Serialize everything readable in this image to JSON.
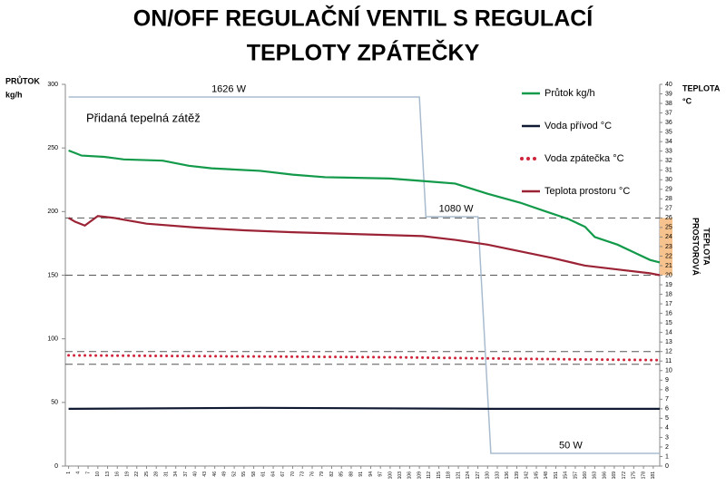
{
  "chart_data": {
    "type": "line",
    "title": [
      "ON/OFF REGULAČNÍ VENTIL S REGULACÍ",
      "TEPLOTY ZPÁTEČKY"
    ],
    "y_label": [
      "PRŮTOK",
      "kg/h"
    ],
    "y2_label": [
      "TEPLOTA",
      "°C"
    ],
    "annotation": "Přidaná tepelná zátěž",
    "xlim": [
      0,
      183
    ],
    "xticks": [
      1,
      4,
      7,
      10,
      13,
      16,
      19,
      22,
      25,
      28,
      31,
      34,
      37,
      40,
      43,
      46,
      49,
      52,
      55,
      58,
      61,
      64,
      67,
      70,
      73,
      76,
      79,
      82,
      85,
      88,
      91,
      94,
      97,
      100,
      103,
      106,
      109,
      112,
      115,
      118,
      121,
      124,
      127,
      130,
      133,
      136,
      139,
      142,
      145,
      148,
      151,
      154,
      157,
      160,
      163,
      166,
      169,
      172,
      175,
      178,
      181
    ],
    "ylim": [
      0,
      300
    ],
    "yticks": [
      0,
      50,
      100,
      150,
      200,
      250,
      300
    ],
    "y2lim": [
      0,
      40
    ],
    "y2ticks": [
      0,
      1,
      2,
      3,
      4,
      5,
      6,
      7,
      8,
      9,
      10,
      11,
      12,
      13,
      14,
      15,
      16,
      17,
      18,
      19,
      20,
      21,
      22,
      23,
      24,
      25,
      26,
      27,
      28,
      29,
      30,
      31,
      32,
      33,
      34,
      35,
      36,
      37,
      38,
      39,
      40
    ],
    "grid": false,
    "legend": "top-right",
    "series": [
      {
        "name": "Průtok kg/h",
        "color": "#129a4a",
        "style": "solid",
        "x": [
          1,
          3,
          5,
          12,
          18,
          30,
          38,
          45,
          60,
          70,
          80,
          100,
          110,
          120,
          125,
          130,
          140,
          148,
          155,
          160,
          163,
          170,
          175,
          180,
          183
        ],
        "values": [
          248,
          246,
          244,
          243,
          241,
          240,
          236,
          234,
          232,
          229,
          227,
          226,
          224,
          222,
          218,
          214,
          207,
          200,
          194,
          188,
          180,
          174,
          168,
          162,
          160
        ]
      },
      {
        "name": "Voda přívod °C",
        "color": "#111a33",
        "style": "solid",
        "axis": "y2",
        "x": [
          1,
          60,
          130,
          183
        ],
        "values": [
          6,
          6.1,
          6,
          6
        ]
      },
      {
        "name": "Voda zpátečka °C",
        "color": "#d0243a",
        "style": "dotted",
        "axis": "y2",
        "x": [
          1,
          50,
          100,
          150,
          183
        ],
        "values": [
          11.6,
          11.5,
          11.4,
          11.2,
          11.1
        ]
      },
      {
        "name": "Teplota prostoru °C",
        "color": "#9b2335",
        "style": "solid",
        "axis": "y2",
        "x": [
          1,
          3,
          6,
          10,
          15,
          25,
          40,
          55,
          70,
          90,
          110,
          120,
          130,
          140,
          150,
          160,
          170,
          180,
          183
        ],
        "values": [
          26,
          25.6,
          25.2,
          26.2,
          26,
          25.4,
          25,
          24.7,
          24.5,
          24.3,
          24.1,
          23.7,
          23.2,
          22.5,
          21.8,
          21,
          20.6,
          20.2,
          20
        ]
      }
    ],
    "load_line": {
      "color": "#a9bccf",
      "x": [
        1,
        109,
        111,
        127,
        131,
        183
      ],
      "values": [
        290,
        290,
        196,
        196,
        10,
        10
      ],
      "labels": [
        {
          "text": "1626 W",
          "x": 45,
          "y": 296
        },
        {
          "text": "1080 W",
          "x": 115,
          "y": 202
        },
        {
          "text": "50 W",
          "x": 152,
          "y": 16
        }
      ]
    },
    "reference_lines": {
      "color": "#555555",
      "values": [
        195,
        150,
        90,
        80
      ]
    },
    "band": {
      "range": [
        20,
        26
      ],
      "color": "#f6c28d",
      "label": [
        "PROSTOROVÁ",
        "TEPLOTA"
      ]
    }
  }
}
